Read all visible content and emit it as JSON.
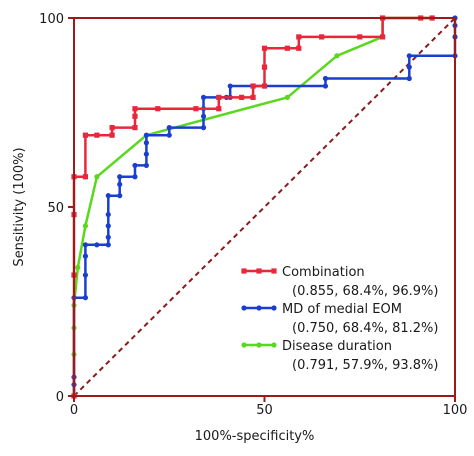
{
  "chart_data": {
    "type": "line",
    "title": "",
    "xlabel": "100%-specificity%",
    "ylabel": "Sensitivity (100%)",
    "xlim": [
      0,
      100
    ],
    "ylim": [
      0,
      100
    ],
    "x_ticks": [
      "0",
      "50",
      "100"
    ],
    "y_ticks": [
      "0",
      "50",
      "100"
    ],
    "grid": false,
    "legend_position": "bottom-right",
    "frame_color": "#9b1b1b",
    "reference_line": {
      "from": [
        0,
        0
      ],
      "to": [
        100,
        100
      ],
      "style": "dashed",
      "color": "#8b1a1a"
    },
    "series": [
      {
        "name": "Combination",
        "stats": "(0.855, 68.4%, 96.9%)",
        "color": "#e8283a",
        "marker": "square",
        "step": true,
        "points": [
          [
            0,
            0
          ],
          [
            0,
            32
          ],
          [
            0,
            48
          ],
          [
            0,
            58
          ],
          [
            3,
            58
          ],
          [
            3,
            69
          ],
          [
            6,
            69
          ],
          [
            10,
            69
          ],
          [
            10,
            71
          ],
          [
            16,
            71
          ],
          [
            16,
            74
          ],
          [
            16,
            76
          ],
          [
            22,
            76
          ],
          [
            32,
            76
          ],
          [
            38,
            76
          ],
          [
            38,
            79
          ],
          [
            44,
            79
          ],
          [
            47,
            79
          ],
          [
            47,
            82
          ],
          [
            50,
            82
          ],
          [
            50,
            87
          ],
          [
            50,
            92
          ],
          [
            56,
            92
          ],
          [
            59,
            92
          ],
          [
            59,
            95
          ],
          [
            65,
            95
          ],
          [
            75,
            95
          ],
          [
            81,
            95
          ],
          [
            81,
            100
          ],
          [
            91,
            100
          ],
          [
            94,
            100
          ]
        ]
      },
      {
        "name": "MD of medial EOM",
        "stats": "(0.750, 68.4%, 81.2%)",
        "color": "#1a3fd0",
        "marker": "circle",
        "step": true,
        "points": [
          [
            0,
            0
          ],
          [
            0,
            3
          ],
          [
            0,
            5
          ],
          [
            0,
            26
          ],
          [
            3,
            26
          ],
          [
            3,
            32
          ],
          [
            3,
            37
          ],
          [
            3,
            40
          ],
          [
            6,
            40
          ],
          [
            9,
            40
          ],
          [
            9,
            42
          ],
          [
            9,
            45
          ],
          [
            9,
            48
          ],
          [
            9,
            53
          ],
          [
            12,
            53
          ],
          [
            12,
            56
          ],
          [
            12,
            58
          ],
          [
            16,
            58
          ],
          [
            16,
            61
          ],
          [
            19,
            61
          ],
          [
            19,
            64
          ],
          [
            19,
            67
          ],
          [
            19,
            69
          ],
          [
            25,
            69
          ],
          [
            25,
            71
          ],
          [
            34,
            71
          ],
          [
            34,
            74
          ],
          [
            34,
            76
          ],
          [
            34,
            79
          ],
          [
            40,
            79
          ],
          [
            41,
            79
          ],
          [
            41,
            82
          ],
          [
            50,
            82
          ],
          [
            66,
            82
          ],
          [
            66,
            84
          ],
          [
            88,
            84
          ],
          [
            88,
            87
          ],
          [
            88,
            90
          ],
          [
            100,
            90
          ],
          [
            100,
            95
          ],
          [
            100,
            98
          ],
          [
            100,
            100
          ]
        ]
      },
      {
        "name": "Disease duration",
        "stats": "(0.791, 57.9%, 93.8%)",
        "color": "#5ad81c",
        "marker": "circle",
        "step": false,
        "points": [
          [
            0,
            0
          ],
          [
            0,
            11
          ],
          [
            0,
            18
          ],
          [
            0,
            24
          ],
          [
            1,
            34
          ],
          [
            3,
            45
          ],
          [
            6,
            58
          ],
          [
            19,
            69
          ],
          [
            56,
            79
          ],
          [
            69,
            90
          ],
          [
            81,
            95
          ],
          [
            81,
            100
          ],
          [
            94,
            100
          ]
        ]
      }
    ]
  }
}
